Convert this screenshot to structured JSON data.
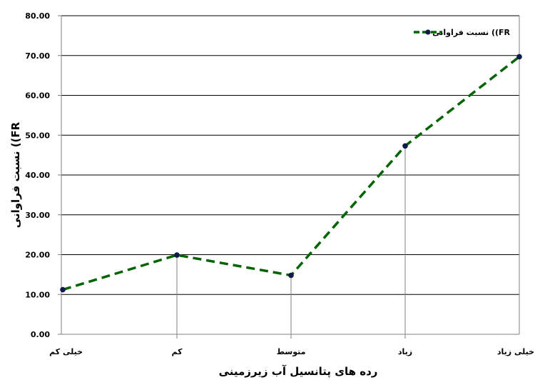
{
  "chart_data": {
    "type": "line",
    "title": "",
    "xlabel": "رده های پتانسیل آب زیرزمینی",
    "ylabel": "نسبت فراوانی ((FR",
    "categories": [
      "خیلی کم",
      "کم",
      "متوسط",
      "زیاد",
      "خیلی زیاد"
    ],
    "series": [
      {
        "name": "نسبت فراوانی ((FR",
        "values": [
          11.2,
          19.9,
          14.8,
          47.3,
          69.7
        ]
      }
    ],
    "ylim": [
      0,
      80
    ],
    "yticks": [
      0,
      10,
      20,
      30,
      40,
      50,
      60,
      70,
      80
    ],
    "ytick_labels": [
      "0.00",
      "10.00",
      "20.00",
      "30.00",
      "40.00",
      "50.00",
      "60.00",
      "70.00",
      "80.00"
    ],
    "grid": true,
    "legend_position": "top-right",
    "colors": {
      "line": "#006400",
      "marker": "#0d1b4d",
      "grid": "#000000",
      "axis": "#808080"
    }
  }
}
